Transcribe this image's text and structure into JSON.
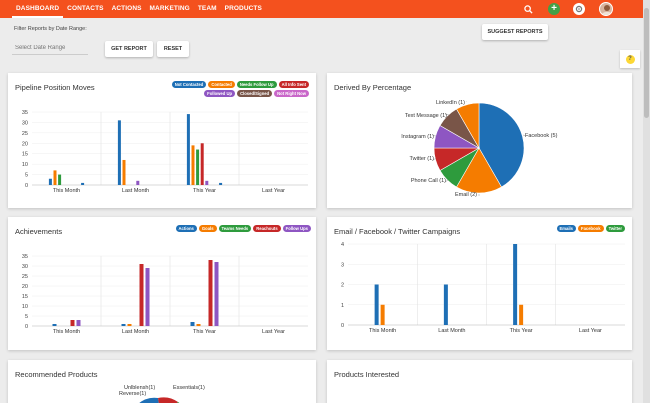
{
  "nav": {
    "items": [
      "DASHBOARD",
      "CONTACTS",
      "ACTIONS",
      "MARKETING",
      "TEAM",
      "PRODUCTS"
    ]
  },
  "filter": {
    "label": "Filter Reports by Date Range:",
    "placeholder": "Select Date Range",
    "get_report": "GET REPORT",
    "reset": "RESET",
    "suggest": "SUGGEST REPORTS"
  },
  "help_label": "?",
  "colors": {
    "blue": "#1e6fb5",
    "orange": "#f57c00",
    "green": "#2e9b3d",
    "red": "#c62828",
    "purple": "#8e56c2",
    "brown": "#795548",
    "gray": "#757575",
    "pink": "#c967c9",
    "accent": "#f4511e"
  },
  "cards": {
    "pipeline": {
      "title": "Pipeline Position Moves",
      "legend": [
        {
          "label": "Not Contacted",
          "color": "#1e6fb5"
        },
        {
          "label": "Contacted",
          "color": "#f57c00"
        },
        {
          "label": "Needs Follow Up",
          "color": "#2e9b3d"
        },
        {
          "label": "All Info Sent",
          "color": "#c62828"
        },
        {
          "label": "Followed Up",
          "color": "#8e56c2"
        },
        {
          "label": "Closed/Signed",
          "color": "#795548"
        },
        {
          "label": "Not Right Now",
          "color": "#c967c9"
        }
      ]
    },
    "derived": {
      "title": "Derived By Percentage"
    },
    "achievements": {
      "title": "Achievements",
      "legend": [
        {
          "label": "Actions",
          "color": "#1e6fb5"
        },
        {
          "label": "Goals",
          "color": "#f57c00"
        },
        {
          "label": "Teams Needs",
          "color": "#2e9b3d"
        },
        {
          "label": "Reachouts",
          "color": "#c62828"
        },
        {
          "label": "Follow Ups",
          "color": "#8e56c2"
        }
      ]
    },
    "campaigns": {
      "title": "Email / Facebook / Twitter Campaigns",
      "legend": [
        {
          "label": "Emails",
          "color": "#1e6fb5"
        },
        {
          "label": "Facebook",
          "color": "#f57c00"
        },
        {
          "label": "Twitter",
          "color": "#2e9b3d"
        }
      ]
    },
    "recommended": {
      "title": "Recommended Products",
      "labels": [
        "Unlblensh(1)",
        "Reverse(1)",
        "Essentials(1)"
      ]
    },
    "interested": {
      "title": "Products Interested"
    }
  },
  "chart_data": [
    {
      "type": "bar",
      "title": "Pipeline Position Moves",
      "categories": [
        "This Month",
        "Last Month",
        "This Year",
        "Last Year"
      ],
      "ylim": [
        0,
        35
      ],
      "yticks": [
        0,
        5,
        10,
        15,
        20,
        25,
        30,
        35
      ],
      "series": [
        {
          "name": "Not Contacted",
          "color": "#1e6fb5",
          "values": [
            3,
            31,
            34,
            0
          ]
        },
        {
          "name": "Contacted",
          "color": "#f57c00",
          "values": [
            7,
            12,
            19,
            0
          ]
        },
        {
          "name": "Needs Follow Up",
          "color": "#2e9b3d",
          "values": [
            5,
            0,
            17,
            0
          ]
        },
        {
          "name": "All Info Sent",
          "color": "#c62828",
          "values": [
            0,
            0,
            20,
            0
          ]
        },
        {
          "name": "Followed Up",
          "color": "#8e56c2",
          "values": [
            0,
            2,
            2,
            0
          ]
        },
        {
          "name": "Closed/Signed",
          "color": "#795548",
          "values": [
            0,
            0,
            0,
            0
          ]
        },
        {
          "name": "Not Right Now",
          "color": "#c967c9",
          "values": [
            0,
            0,
            0,
            0
          ]
        },
        {
          "name": "_extra",
          "color": "#1e6fb5",
          "values": [
            1,
            0,
            1,
            0
          ]
        }
      ]
    },
    {
      "type": "pie",
      "title": "Derived By Percentage",
      "slices": [
        {
          "label": "Facebook (5)",
          "value": 5,
          "color": "#1e6fb5"
        },
        {
          "label": "Email (2)",
          "value": 2,
          "color": "#f57c00"
        },
        {
          "label": "Phone Call (1)",
          "value": 1,
          "color": "#2e9b3d"
        },
        {
          "label": "Twitter (1)",
          "value": 1,
          "color": "#c62828"
        },
        {
          "label": "Instagram (1)",
          "value": 1,
          "color": "#8e56c2"
        },
        {
          "label": "Text Message (1)",
          "value": 1,
          "color": "#795548"
        },
        {
          "label": "LinkedIn (1)",
          "value": 1,
          "color": "#f57c00"
        }
      ]
    },
    {
      "type": "bar",
      "title": "Achievements",
      "categories": [
        "This Month",
        "Last Month",
        "This Year",
        "Last Year"
      ],
      "ylim": [
        0,
        35
      ],
      "yticks": [
        0,
        5,
        10,
        15,
        20,
        25,
        30,
        35
      ],
      "series": [
        {
          "name": "Actions",
          "color": "#1e6fb5",
          "values": [
            1,
            1,
            2,
            0
          ]
        },
        {
          "name": "Goals",
          "color": "#f57c00",
          "values": [
            0,
            1,
            1,
            0
          ]
        },
        {
          "name": "Teams Needs",
          "color": "#2e9b3d",
          "values": [
            0,
            0,
            0,
            0
          ]
        },
        {
          "name": "Reachouts",
          "color": "#c62828",
          "values": [
            3,
            31,
            33,
            0
          ]
        },
        {
          "name": "Follow Ups",
          "color": "#8e56c2",
          "values": [
            3,
            29,
            32,
            0
          ]
        }
      ]
    },
    {
      "type": "bar",
      "title": "Email / Facebook / Twitter Campaigns",
      "categories": [
        "This Month",
        "Last Month",
        "This Year",
        "Last Year"
      ],
      "ylim": [
        0,
        4
      ],
      "yticks": [
        0,
        1,
        2,
        3,
        4
      ],
      "series": [
        {
          "name": "Emails",
          "color": "#1e6fb5",
          "values": [
            2,
            2,
            4,
            0
          ]
        },
        {
          "name": "Facebook",
          "color": "#f57c00",
          "values": [
            1,
            0,
            1,
            0
          ]
        },
        {
          "name": "Twitter",
          "color": "#2e9b3d",
          "values": [
            0,
            0,
            0,
            0
          ]
        }
      ]
    }
  ]
}
